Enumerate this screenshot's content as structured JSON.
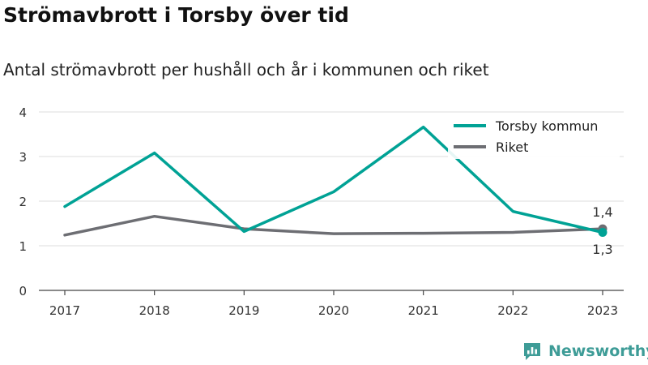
{
  "header": {
    "title": "Strömavbrott i Torsby över tid",
    "subtitle": "Antal strömavbrott per hushåll och år i kommunen och riket"
  },
  "brand": {
    "name": "Newsworthy",
    "icon": "bar-chart-logo-icon",
    "color": "#3e9c97"
  },
  "chart_data": {
    "type": "line",
    "title": "Strömavbrott i Torsby över tid",
    "subtitle": "Antal strömavbrott per hushåll och år i kommunen och riket",
    "xlabel": "",
    "ylabel": "",
    "x": [
      "2017",
      "2018",
      "2019",
      "2020",
      "2021",
      "2022",
      "2023"
    ],
    "ylim": [
      0,
      4
    ],
    "yticks": [
      0,
      1,
      2,
      3,
      4
    ],
    "grid": true,
    "legend_position": "top-right",
    "series": [
      {
        "name": "Torsby kommun",
        "color": "#00a295",
        "values": [
          1.88,
          3.08,
          1.32,
          2.21,
          3.66,
          1.77,
          1.3
        ]
      },
      {
        "name": "Riket",
        "color": "#6d6e73",
        "values": [
          1.24,
          1.66,
          1.38,
          1.27,
          1.28,
          1.3,
          1.38
        ]
      }
    ],
    "end_labels": [
      {
        "series": "Riket",
        "text": "1,4"
      },
      {
        "series": "Torsby kommun",
        "text": "1,3"
      }
    ]
  }
}
